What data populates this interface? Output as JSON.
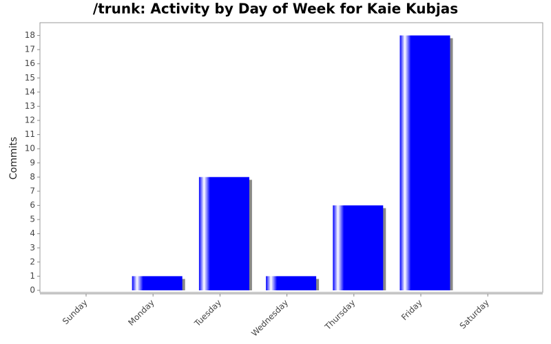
{
  "chart_data": {
    "type": "bar",
    "title": "/trunk: Activity by Day of Week for Kaie Kubjas",
    "y_label": "Commits",
    "categories": [
      "Sunday",
      "Monday",
      "Tuesday",
      "Wednesday",
      "Thursday",
      "Friday",
      "Saturday"
    ],
    "values": [
      0,
      1,
      8,
      1,
      6,
      18,
      0
    ],
    "color": "#0000ff",
    "ylim": [
      0,
      18.9
    ],
    "yticks": [
      0,
      1,
      2,
      3,
      4,
      5,
      6,
      7,
      8,
      9,
      10,
      11,
      12,
      13,
      14,
      15,
      16,
      17,
      18
    ]
  }
}
